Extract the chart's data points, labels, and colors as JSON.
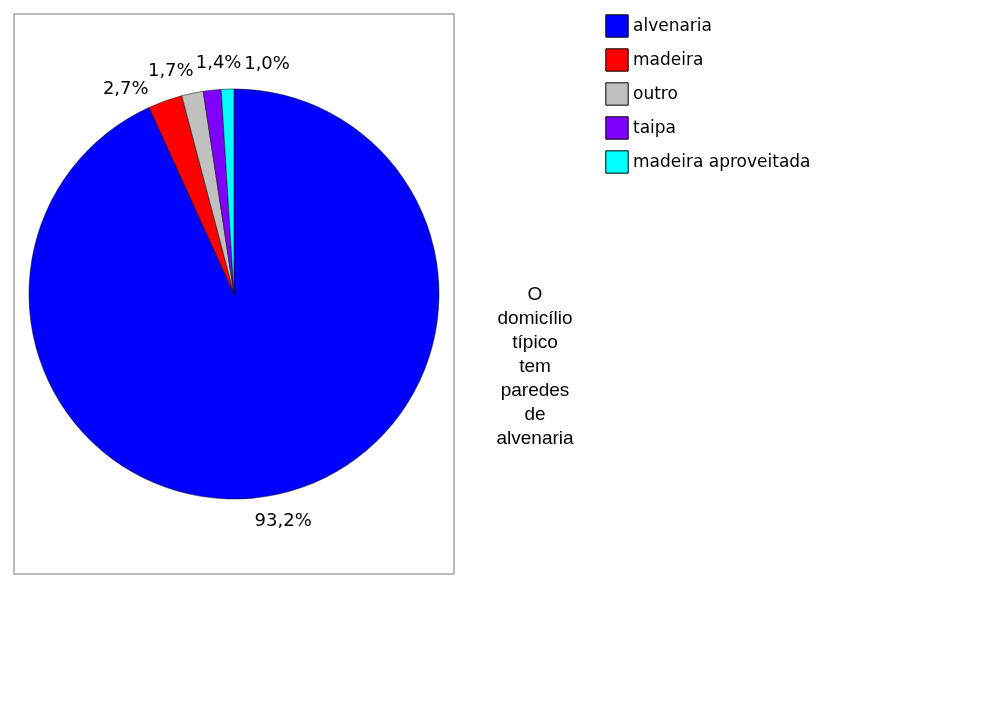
{
  "chart_data": {
    "type": "pie",
    "categories": [
      "alvenaria",
      "madeira",
      "outro",
      "taipa",
      "madeira aproveitada"
    ],
    "values": [
      93.2,
      2.7,
      1.7,
      1.4,
      1.0
    ],
    "colors": [
      "#0000ff",
      "#ff0000",
      "#c0c0c0",
      "#8000ff",
      "#00ffff"
    ],
    "value_labels": [
      "93,2%",
      "2,7%",
      "1,7%",
      "1,4%",
      "1,0%"
    ],
    "legend": "right",
    "annotations": [
      "O domicílio típico tem paredes de alvenaria"
    ]
  }
}
